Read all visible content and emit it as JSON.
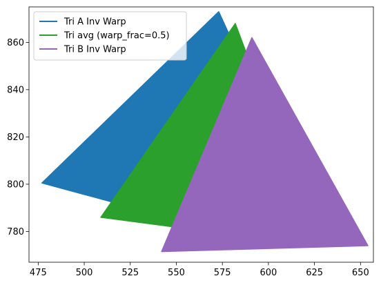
{
  "chart_data": {
    "type": "area",
    "xlim": [
      470,
      657
    ],
    "ylim": [
      767,
      875
    ],
    "xticks": [
      475,
      500,
      525,
      550,
      575,
      600,
      625,
      650
    ],
    "yticks": [
      780,
      800,
      820,
      840,
      860
    ],
    "grid": false,
    "legend_position": "top-left",
    "series": [
      {
        "name": "Tri A Inv Warp",
        "color": "#1f77b4",
        "points": [
          [
            477,
            800.5
          ],
          [
            573,
            873
          ],
          [
            583,
            856
          ],
          [
            560,
            783
          ]
        ]
      },
      {
        "name": "Tri avg (warp_frac=0.5)",
        "color": "#2ca02c",
        "points": [
          [
            509,
            786
          ],
          [
            582,
            868
          ],
          [
            594,
            843
          ],
          [
            556,
            781
          ],
          [
            548,
            782
          ]
        ]
      },
      {
        "name": "Tri B Inv Warp",
        "color": "#9467bd",
        "points": [
          [
            542,
            771.5
          ],
          [
            591,
            862
          ],
          [
            654,
            774
          ]
        ]
      }
    ]
  }
}
